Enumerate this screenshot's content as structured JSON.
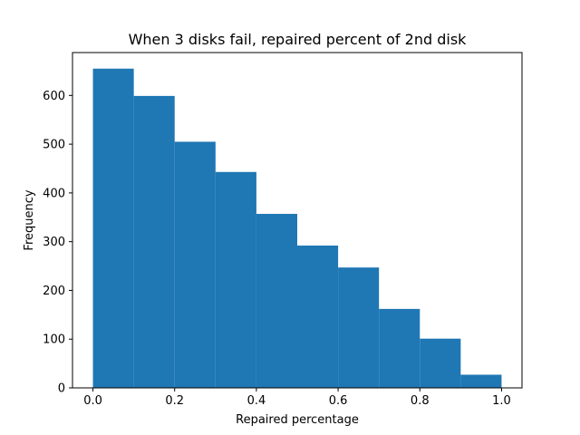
{
  "chart_data": {
    "type": "bar",
    "subtype": "histogram",
    "title": "When 3 disks fail, repaired percent of 2nd disk",
    "xlabel": "Repaired percentage",
    "ylabel": "Frequency",
    "bin_edges": [
      0.0,
      0.1,
      0.2,
      0.3,
      0.4,
      0.5,
      0.6,
      0.7,
      0.8,
      0.9,
      1.0
    ],
    "values": [
      655,
      599,
      505,
      443,
      357,
      292,
      247,
      162,
      101,
      27
    ],
    "xlim": [
      -0.05,
      1.05
    ],
    "ylim": [
      0,
      688
    ],
    "xticks": [
      0.0,
      0.2,
      0.4,
      0.6,
      0.8,
      1.0
    ],
    "xtick_labels": [
      "0.0",
      "0.2",
      "0.4",
      "0.6",
      "0.8",
      "1.0"
    ],
    "yticks": [
      0,
      100,
      200,
      300,
      400,
      500,
      600
    ],
    "ytick_labels": [
      "0",
      "100",
      "200",
      "300",
      "400",
      "500",
      "600"
    ],
    "bar_color": "#1f77b4",
    "grid": false,
    "legend": "none"
  }
}
